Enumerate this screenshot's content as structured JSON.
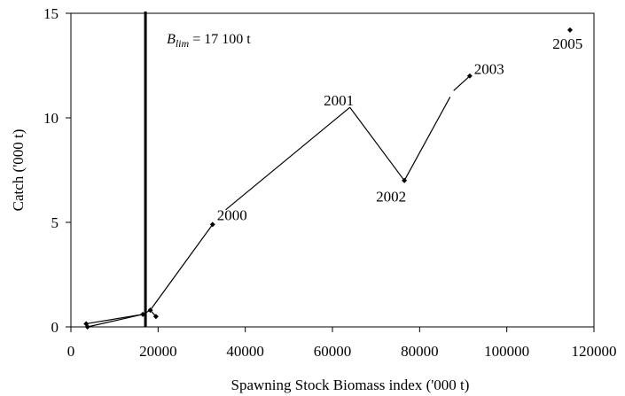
{
  "chart_data": {
    "type": "scatter",
    "title": "",
    "xlabel": "Spawning Stock Biomass index ('000 t)",
    "ylabel": "Catch ('000 t)",
    "xlim": [
      0,
      120000
    ],
    "ylim": [
      0,
      15
    ],
    "x_ticks": [
      0,
      20000,
      40000,
      60000,
      80000,
      100000,
      120000
    ],
    "y_ticks": [
      0,
      5,
      10,
      15
    ],
    "grid": false,
    "series": [
      {
        "points": [
          {
            "x": 3500,
            "y": 0.15
          },
          {
            "x": 3800,
            "y": 0.0
          },
          {
            "x": 16500,
            "y": 0.6
          },
          {
            "x": 18200,
            "y": 0.8
          },
          {
            "x": 19500,
            "y": 0.5
          },
          {
            "x": 32500,
            "y": 4.9
          },
          {
            "x": 76500,
            "y": 7.0
          },
          {
            "x": 91500,
            "y": 12.0
          },
          {
            "x": 114500,
            "y": 14.2
          }
        ],
        "segments": [
          [
            3800,
            0.0,
            16500,
            0.6
          ],
          [
            16500,
            0.6,
            18200,
            0.8
          ],
          [
            18200,
            0.8,
            19500,
            0.5
          ],
          [
            3500,
            0.15,
            16500,
            0.6
          ],
          [
            18200,
            0.8,
            32500,
            4.9
          ],
          [
            35500,
            5.6,
            64000,
            10.5
          ],
          [
            64000,
            10.5,
            76500,
            7.0
          ],
          [
            76500,
            7.0,
            87000,
            11.0
          ],
          [
            87800,
            11.3,
            91500,
            12.0
          ]
        ]
      }
    ],
    "point_labels": [
      {
        "text": "2000",
        "x": 33500,
        "y": 5.1
      },
      {
        "text": "2001",
        "x": 58000,
        "y": 10.6
      },
      {
        "text": "2002",
        "x": 70000,
        "y": 6.0
      },
      {
        "text": "2003",
        "x": 92500,
        "y": 12.1
      },
      {
        "text": "2005",
        "x": 110500,
        "y": 13.3
      }
    ],
    "reference_line": {
      "x": 17100,
      "label_main": "B",
      "label_sub": "lim",
      "label_rest": " = 17 100 t"
    }
  }
}
